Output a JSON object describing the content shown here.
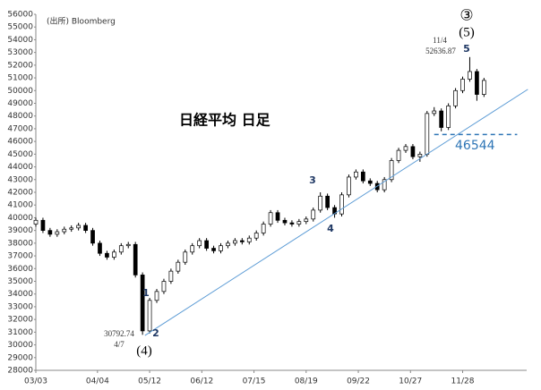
{
  "chart_data": {
    "type": "candlestick",
    "annotations": [
      "(出所) Bloomberg",
      "日経平均 日足",
      "1",
      "2",
      "3",
      "4",
      "5",
      "③",
      "(5)",
      "(4)",
      "4/7",
      "11/4"
    ],
    "x": [
      0,
      3,
      6,
      9,
      12,
      15,
      18,
      21,
      24,
      27,
      30,
      33,
      36,
      39,
      42,
      45,
      48,
      51,
      54,
      57,
      60,
      63,
      66,
      69,
      72,
      75,
      78,
      81,
      84,
      87,
      90,
      93,
      96,
      99,
      102,
      105,
      108,
      111,
      114,
      117,
      120,
      123,
      126,
      129,
      132,
      135,
      138,
      141,
      144,
      147,
      150,
      153,
      156,
      159,
      162,
      165,
      168,
      171,
      174,
      177,
      180,
      183,
      186,
      189
    ],
    "open": [
      39500,
      39800,
      39000,
      38700,
      38900,
      39100,
      39200,
      39400,
      39000,
      38000,
      37200,
      36900,
      37300,
      37800,
      37900,
      35500,
      31100,
      33500,
      34200,
      35000,
      35800,
      36500,
      37300,
      37800,
      38200,
      37600,
      37400,
      37800,
      38000,
      38200,
      38100,
      38400,
      38800,
      39500,
      40400,
      39800,
      39600,
      39500,
      39700,
      39900,
      40600,
      41700,
      40800,
      40300,
      41800,
      43200,
      43600,
      42900,
      42700,
      42200,
      43000,
      44500,
      45300,
      45600,
      44800,
      45000,
      48200,
      48400,
      47100,
      48800,
      50000,
      50900,
      51500,
      49700
    ],
    "high": [
      40000,
      40000,
      39200,
      39100,
      39300,
      39400,
      39600,
      39600,
      39200,
      38200,
      37400,
      37500,
      38000,
      38100,
      38100,
      35700,
      33700,
      34400,
      35200,
      36000,
      36700,
      37500,
      38000,
      38400,
      38400,
      37800,
      38000,
      38200,
      38400,
      38400,
      38600,
      39000,
      39700,
      40600,
      40600,
      40000,
      39800,
      39900,
      40100,
      40800,
      42000,
      41900,
      41000,
      42000,
      43400,
      43800,
      43800,
      43100,
      42900,
      43200,
      44700,
      45500,
      45800,
      45800,
      45200,
      48400,
      48700,
      48600,
      49000,
      50200,
      51100,
      52636.87,
      51700,
      51000
    ],
    "low": [
      39300,
      38800,
      38500,
      38500,
      38700,
      38900,
      39000,
      38800,
      37800,
      37000,
      36700,
      36700,
      37100,
      37600,
      35300,
      30792.74,
      30900,
      33300,
      34000,
      34800,
      35600,
      36300,
      37100,
      37600,
      37400,
      37200,
      37200,
      37600,
      37800,
      37900,
      37900,
      38200,
      38600,
      39300,
      39600,
      39400,
      39300,
      39300,
      39500,
      39700,
      40400,
      40600,
      40000,
      40100,
      41600,
      43000,
      42700,
      42500,
      42000,
      42000,
      42800,
      44300,
      45100,
      44600,
      44400,
      44800,
      48000,
      46800,
      46900,
      48600,
      49800,
      50700,
      49200,
      49500
    ],
    "close": [
      39800,
      39000,
      38700,
      38900,
      39100,
      39200,
      39400,
      39000,
      38000,
      37200,
      36900,
      37300,
      37800,
      37900,
      35500,
      31100,
      33500,
      34200,
      35000,
      35800,
      36500,
      37300,
      37800,
      38200,
      37600,
      37400,
      37800,
      38000,
      38200,
      38100,
      38400,
      38800,
      39500,
      40400,
      39800,
      39600,
      39500,
      39700,
      39900,
      40600,
      41700,
      40800,
      40300,
      41800,
      43200,
      43600,
      42900,
      42700,
      42200,
      43000,
      44500,
      45300,
      45600,
      44800,
      45000,
      48200,
      48400,
      47100,
      48800,
      50000,
      50900,
      51500,
      49700,
      50800
    ],
    "trendline": {
      "x": [
        46,
        207.5
      ],
      "values": [
        30740,
        50100
      ],
      "color": "#5b9bd5"
    },
    "level": {
      "value": 46544,
      "x": [
        168,
        203
      ],
      "color": "#2e75b6"
    },
    "xlim": [
      0,
      207
    ],
    "xticks": [
      {
        "value": 0,
        "label": "03/03"
      },
      {
        "value": 26,
        "label": "04/04"
      },
      {
        "value": 48,
        "label": "05/12"
      },
      {
        "value": 70,
        "label": "06/12"
      },
      {
        "value": 92,
        "label": "07/15"
      },
      {
        "value": 114,
        "label": "08/19"
      },
      {
        "value": 136,
        "label": "09/22"
      },
      {
        "value": 158,
        "label": "10/27"
      },
      {
        "value": 180,
        "label": "11/28"
      }
    ],
    "ylim": [
      28000,
      56000
    ],
    "yticks": [
      28000,
      29000,
      30000,
      31000,
      32000,
      33000,
      34000,
      35000,
      36000,
      37000,
      38000,
      39000,
      40000,
      41000,
      42000,
      43000,
      44000,
      45000,
      46000,
      47000,
      48000,
      49000,
      50000,
      51000,
      52000,
      53000,
      54000,
      55000,
      56000
    ],
    "grid": false
  }
}
